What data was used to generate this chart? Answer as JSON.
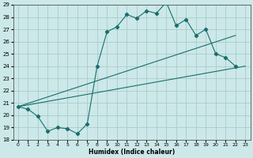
{
  "xlabel": "Humidex (Indice chaleur)",
  "ylabel": "",
  "xlim": [
    -0.5,
    23.5
  ],
  "ylim": [
    18,
    29
  ],
  "xticks": [
    0,
    1,
    2,
    3,
    4,
    5,
    6,
    7,
    8,
    9,
    10,
    11,
    12,
    13,
    14,
    15,
    16,
    17,
    18,
    19,
    20,
    21,
    22,
    23
  ],
  "yticks": [
    18,
    19,
    20,
    21,
    22,
    23,
    24,
    25,
    26,
    27,
    28,
    29
  ],
  "background_color": "#cce8e8",
  "grid_color": "#aacccc",
  "line_color": "#1a6e6e",
  "line1_x": [
    0,
    1,
    2,
    3,
    4,
    5,
    6,
    7,
    8,
    9,
    10,
    11,
    12,
    13,
    14,
    15,
    16,
    17,
    18,
    19,
    20,
    21,
    22
  ],
  "line1_y": [
    20.7,
    20.5,
    19.9,
    18.7,
    19.0,
    18.9,
    18.5,
    19.3,
    24.0,
    26.8,
    27.2,
    28.2,
    27.9,
    28.5,
    28.3,
    29.2,
    27.3,
    27.8,
    26.5,
    27.0,
    25.0,
    24.7,
    24.0
  ],
  "line2_x": [
    0,
    22
  ],
  "line2_y": [
    20.7,
    26.5
  ],
  "line3_x": [
    0,
    23
  ],
  "line3_y": [
    20.7,
    24.0
  ]
}
